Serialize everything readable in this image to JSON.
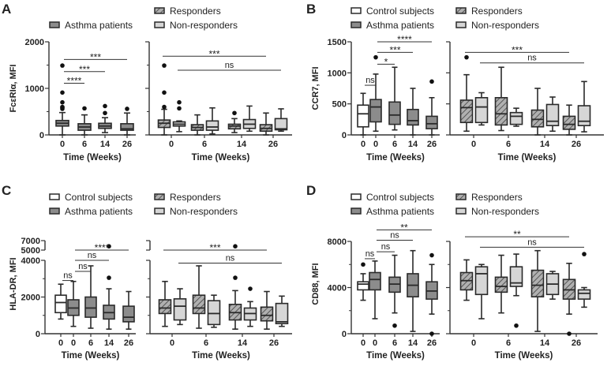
{
  "colors": {
    "control": "#ffffff",
    "asthma": "#8c8c8c",
    "responders": "#a6a6a6",
    "nonresponders": "#d6d6d6",
    "stroke": "#2a2a2a"
  },
  "series_labels": {
    "control": "Control subjects",
    "asthma": "Asthma patients",
    "responders": "Responders",
    "nonresponders": "Non-responders"
  },
  "chart_data": [
    {
      "panel": "A",
      "type": "box",
      "ylabel": "FcεRIα, MFI",
      "xlabel": "Time (Weeks)",
      "ylim": [
        0,
        2000
      ],
      "yticks": [
        "0",
        "1000",
        "2000"
      ],
      "ytick_values": [
        0,
        1000,
        2000
      ],
      "yminor": [
        500,
        1500
      ],
      "legend": [
        "asthma",
        "responders",
        "nonresponders"
      ],
      "left": {
        "categories": [
          "0",
          "6",
          "14",
          "26"
        ],
        "series": [
          "asthma",
          "asthma",
          "asthma",
          "asthma"
        ],
        "stats": [
          [
            0,
            190,
            250,
            310,
            480
          ],
          [
            0,
            100,
            170,
            240,
            430
          ],
          [
            50,
            140,
            190,
            250,
            370
          ],
          [
            0,
            100,
            130,
            240,
            470
          ]
        ],
        "outliers": [
          [
            560,
            590,
            600,
            700,
            910,
            1490
          ],
          [
            570
          ],
          [
            470,
            620
          ],
          [
            560
          ]
        ],
        "sig": [
          {
            "from": 0,
            "to": 1,
            "y": 1110,
            "label": "****"
          },
          {
            "from": 0,
            "to": 2,
            "y": 1360,
            "label": "***"
          },
          {
            "from": 0,
            "to": 3,
            "y": 1620,
            "label": "***"
          }
        ]
      },
      "right": {
        "categories": [
          "0",
          "6",
          "14",
          "26"
        ],
        "responders": {
          "stats": [
            [
              0,
              160,
              250,
              320,
              550
            ],
            [
              0,
              100,
              160,
              220,
              430
            ],
            [
              50,
              130,
              190,
              230,
              350
            ],
            [
              0,
              80,
              140,
              220,
              470
            ]
          ],
          "outliers": [
            [
              600,
              910,
              1490
            ],
            [],
            [
              470
            ],
            []
          ]
        },
        "nonresponders": {
          "stats": [
            [
              70,
              190,
              230,
              280,
              300
            ],
            [
              20,
              100,
              170,
              300,
              580
            ],
            [
              80,
              140,
              230,
              330,
              620
            ],
            [
              80,
              110,
              130,
              350,
              560
            ]
          ],
          "outliers": [
            [
              570,
              700
            ],
            [],
            [],
            []
          ]
        },
        "sig": [
          {
            "series": "responders",
            "from": 0,
            "to": 3,
            "y": 1690,
            "label": "***"
          },
          {
            "series": "nonresponders",
            "from": 0,
            "to": 3,
            "y": 1390,
            "label": "ns"
          }
        ]
      }
    },
    {
      "panel": "B",
      "type": "box",
      "ylabel": "CCR7, MFI",
      "xlabel": "Time (Weeks)",
      "ylim": [
        0,
        1500
      ],
      "yticks": [
        "0",
        "500",
        "1000",
        "1500"
      ],
      "ytick_values": [
        0,
        500,
        1000,
        1500
      ],
      "yminor": [],
      "legend": [
        "control",
        "asthma",
        "responders",
        "nonresponders"
      ],
      "left": {
        "categories": [
          "0",
          "0",
          "6",
          "14",
          "26"
        ],
        "series": [
          "control",
          "asthma",
          "asthma",
          "asthma",
          "asthma"
        ],
        "stats": [
          [
            0,
            130,
            340,
            480,
            670
          ],
          [
            60,
            210,
            450,
            570,
            980
          ],
          [
            80,
            170,
            320,
            530,
            1090
          ],
          [
            0,
            160,
            230,
            410,
            750
          ],
          [
            0,
            100,
            180,
            300,
            600
          ]
        ],
        "outliers": [
          [],
          [
            1250
          ],
          [],
          [],
          [
            860
          ]
        ],
        "sig": [
          {
            "from": 0,
            "to": 1,
            "y": 800,
            "label": "ns"
          },
          {
            "from": 1,
            "to": 2,
            "y": 1140,
            "label": "*"
          },
          {
            "from": 1,
            "to": 3,
            "y": 1330,
            "label": "***"
          },
          {
            "from": 1,
            "to": 4,
            "y": 1500,
            "label": "****"
          }
        ]
      },
      "right": {
        "categories": [
          "0",
          "6",
          "14",
          "26"
        ],
        "responders": {
          "stats": [
            [
              60,
              200,
              440,
              560,
              970
            ],
            [
              70,
              160,
              340,
              600,
              1090
            ],
            [
              0,
              130,
              250,
              400,
              750
            ],
            [
              0,
              90,
              170,
              300,
              480
            ]
          ],
          "outliers": [
            [
              1250
            ],
            [],
            [],
            []
          ]
        },
        "nonresponders": {
          "stats": [
            [
              160,
              200,
              450,
              600,
              680
            ],
            [
              140,
              170,
              300,
              360,
              430
            ],
            [
              60,
              150,
              220,
              490,
              610
            ],
            [
              50,
              150,
              220,
              470,
              860
            ]
          ],
          "outliers": [
            [],
            [],
            [],
            []
          ]
        },
        "sig": [
          {
            "series": "responders",
            "from": 0,
            "to": 3,
            "y": 1330,
            "label": "***"
          },
          {
            "series": "nonresponders",
            "from": 0,
            "to": 3,
            "y": 1160,
            "label": "ns"
          }
        ]
      }
    },
    {
      "panel": "C",
      "type": "box",
      "ylabel": "HLA-DR, MFI",
      "xlabel": "Time (Weeks)",
      "ylim": [
        0,
        7000
      ],
      "axis_break": [
        4000,
        5000
      ],
      "yticks": [
        "0",
        "2000",
        "4000",
        "5000",
        "7000"
      ],
      "ytick_values": [
        0,
        2000,
        4000,
        5000,
        7000
      ],
      "yminor": [
        1000,
        3000
      ],
      "legend": [
        "control",
        "asthma",
        "responders",
        "nonresponders"
      ],
      "left": {
        "categories": [
          "0",
          "0",
          "6",
          "14",
          "26"
        ],
        "series": [
          "control",
          "asthma",
          "asthma",
          "asthma",
          "asthma"
        ],
        "stats": [
          [
            800,
            1150,
            1700,
            2100,
            2700
          ],
          [
            400,
            1000,
            1400,
            1850,
            2850
          ],
          [
            300,
            900,
            1400,
            2000,
            3700
          ],
          [
            250,
            800,
            1150,
            1550,
            2450
          ],
          [
            250,
            650,
            900,
            1500,
            2300
          ]
        ],
        "outliers": [
          [],
          [],
          [],
          [
            3050,
            5800
          ],
          []
        ],
        "sig": [
          {
            "from": 0,
            "to": 1,
            "y": 2900,
            "label": "ns"
          },
          {
            "from": 1,
            "to": 2,
            "y": 3400,
            "label": "ns"
          },
          {
            "from": 1,
            "to": 3,
            "y": 4000,
            "label": "ns"
          },
          {
            "from": 1,
            "to": 4,
            "y": 5000,
            "label": "****"
          }
        ]
      },
      "right": {
        "categories": [
          "0",
          "6",
          "14",
          "26"
        ],
        "responders": {
          "stats": [
            [
              400,
              1100,
              1400,
              1850,
              2850
            ],
            [
              300,
              1100,
              1400,
              2100,
              3700
            ],
            [
              250,
              750,
              1150,
              1600,
              2350
            ],
            [
              250,
              700,
              1000,
              1450,
              2300
            ]
          ],
          "outliers": [
            [],
            [],
            [
              3050,
              5800
            ],
            []
          ]
        },
        "nonresponders": {
          "stats": [
            [
              500,
              750,
              1500,
              1900,
              2450
            ],
            [
              350,
              500,
              1100,
              1800,
              2100
            ],
            [
              400,
              750,
              1100,
              1400,
              1750
            ],
            [
              400,
              550,
              650,
              1650,
              2050
            ]
          ],
          "outliers": [
            [],
            [],
            [
              2450
            ],
            []
          ]
        },
        "sig": [
          {
            "series": "responders",
            "from": 0,
            "to": 3,
            "y": 5000,
            "label": "***"
          },
          {
            "series": "nonresponders",
            "from": 0,
            "to": 3,
            "y": 3850,
            "label": "ns"
          }
        ]
      }
    },
    {
      "panel": "D",
      "type": "box",
      "ylabel": "CD88, MFI",
      "xlabel": "Time (Weeks)",
      "ylim": [
        0,
        8000
      ],
      "yticks": [
        "0",
        "4000",
        "8000"
      ],
      "ytick_values": [
        0,
        4000,
        8000
      ],
      "yminor": [
        2000,
        6000
      ],
      "legend": [
        "control",
        "asthma",
        "responders",
        "nonresponders"
      ],
      "left": {
        "categories": [
          "0",
          "0",
          "6",
          "14",
          "26"
        ],
        "series": [
          "control",
          "asthma",
          "asthma",
          "asthma",
          "asthma"
        ],
        "stats": [
          [
            2900,
            3800,
            4300,
            4500,
            5200
          ],
          [
            1300,
            3800,
            4700,
            5300,
            6300
          ],
          [
            1800,
            3600,
            4300,
            4900,
            6800
          ],
          [
            200,
            3200,
            4200,
            5200,
            7200
          ],
          [
            1700,
            3000,
            3700,
            4500,
            6000
          ]
        ],
        "outliers": [
          [
            6000
          ],
          [],
          [
            700
          ],
          [],
          [
            6800,
            0
          ]
        ],
        "sig": [
          {
            "from": 0,
            "to": 1,
            "y": 6500,
            "label": "ns"
          },
          {
            "from": 1,
            "to": 2,
            "y": 7100,
            "label": "ns"
          },
          {
            "from": 1,
            "to": 3,
            "y": 8100,
            "label": "ns"
          },
          {
            "from": 1,
            "to": 4,
            "y": 9000,
            "label": "**"
          }
        ]
      },
      "right": {
        "categories": [
          "0",
          "6",
          "14",
          "26"
        ],
        "responders": {
          "stats": [
            [
              2900,
              3800,
              4600,
              5300,
              6400
            ],
            [
              1800,
              3600,
              4100,
              4900,
              6800
            ],
            [
              200,
              3200,
              4200,
              5500,
              7200
            ],
            [
              1700,
              3000,
              3800,
              4700,
              6100
            ]
          ],
          "outliers": [
            [],
            [],
            [],
            [
              0
            ]
          ]
        },
        "nonresponders": {
          "stats": [
            [
              1300,
              3400,
              5200,
              5800,
              6000
            ],
            [
              3300,
              4100,
              4400,
              5800,
              6900
            ],
            [
              3000,
              3400,
              4300,
              5200,
              5400
            ],
            [
              2300,
              3000,
              3500,
              3800,
              4000
            ]
          ],
          "outliers": [
            [],
            [
              700
            ],
            [],
            [
              6900
            ]
          ]
        },
        "sig": [
          {
            "series": "responders",
            "from": 0,
            "to": 3,
            "y": 8400,
            "label": "**"
          },
          {
            "series": "nonresponders",
            "from": 0,
            "to": 3,
            "y": 7500,
            "label": "ns"
          }
        ]
      }
    }
  ]
}
